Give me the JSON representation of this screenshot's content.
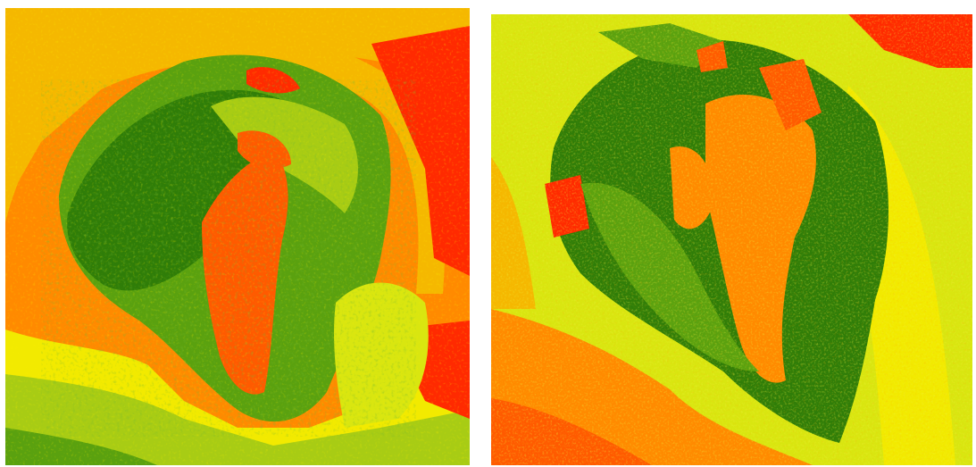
{
  "figure": {
    "panels": [
      {
        "id": "left-map",
        "description_kind": "classified-raster",
        "palette": {
          "dark_green": "#2f7d08",
          "green": "#5aa10f",
          "yellow_green": "#a8cc14",
          "lime": "#d9e610",
          "yellow": "#f2ea00",
          "gold": "#f5b800",
          "orange": "#ff8a00",
          "red_orange": "#ff5a00",
          "red": "#ff2a00"
        }
      },
      {
        "id": "right-map",
        "description_kind": "classified-raster",
        "palette": {
          "dark_green": "#2f7d08",
          "green": "#5aa10f",
          "yellow_green": "#a8cc14",
          "lime": "#d9e610",
          "yellow": "#f2ea00",
          "gold": "#f5b800",
          "orange": "#ff8a00",
          "red_orange": "#ff5a00",
          "red": "#ff2a00"
        }
      }
    ]
  }
}
